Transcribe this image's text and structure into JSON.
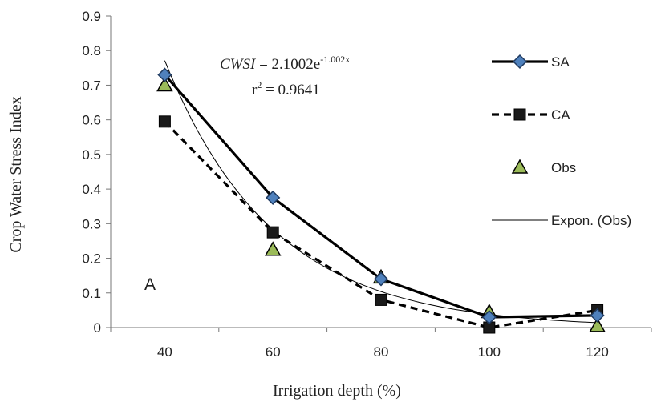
{
  "chart_data": {
    "type": "line",
    "xlabel": "Irrigation depth (%)",
    "ylabel": "Crop Water Stress Index",
    "categories": [
      40,
      60,
      80,
      100,
      120
    ],
    "ylim": [
      0,
      0.9
    ],
    "yticks": [
      "0",
      "0.1",
      "0.2",
      "0.3",
      "0.4",
      "0.5",
      "0.6",
      "0.7",
      "0.8",
      "0.9"
    ],
    "grid": false,
    "legend_position": "right",
    "panel_label": "A",
    "series": [
      {
        "name": "SA",
        "values": [
          0.73,
          0.375,
          0.14,
          0.03,
          0.035
        ],
        "style": "solid-thick",
        "marker": "diamond",
        "color": "#000000",
        "marker_color": "#4f81bd"
      },
      {
        "name": "CA",
        "values": [
          0.595,
          0.275,
          0.08,
          0.0,
          0.05
        ],
        "style": "dashed-thick",
        "marker": "square",
        "color": "#000000",
        "marker_color": "#1a1a1a"
      },
      {
        "name": "Obs",
        "values": [
          0.7,
          0.225,
          0.145,
          0.045,
          0.005
        ],
        "style": "none",
        "marker": "triangle",
        "color": "#000000",
        "marker_color": "#9bbb59"
      }
    ],
    "trendline": {
      "name": "Expon. (Obs)",
      "formula": {
        "a": 2.1002,
        "b": -1.002
      },
      "equation_lhs": "CWSI",
      "equation_rhs": " = 2.1002e",
      "equation_exponent": "-1.002x",
      "r2_label": "r",
      "r2_sup": "2",
      "r2_value": " = 0.9641"
    }
  }
}
